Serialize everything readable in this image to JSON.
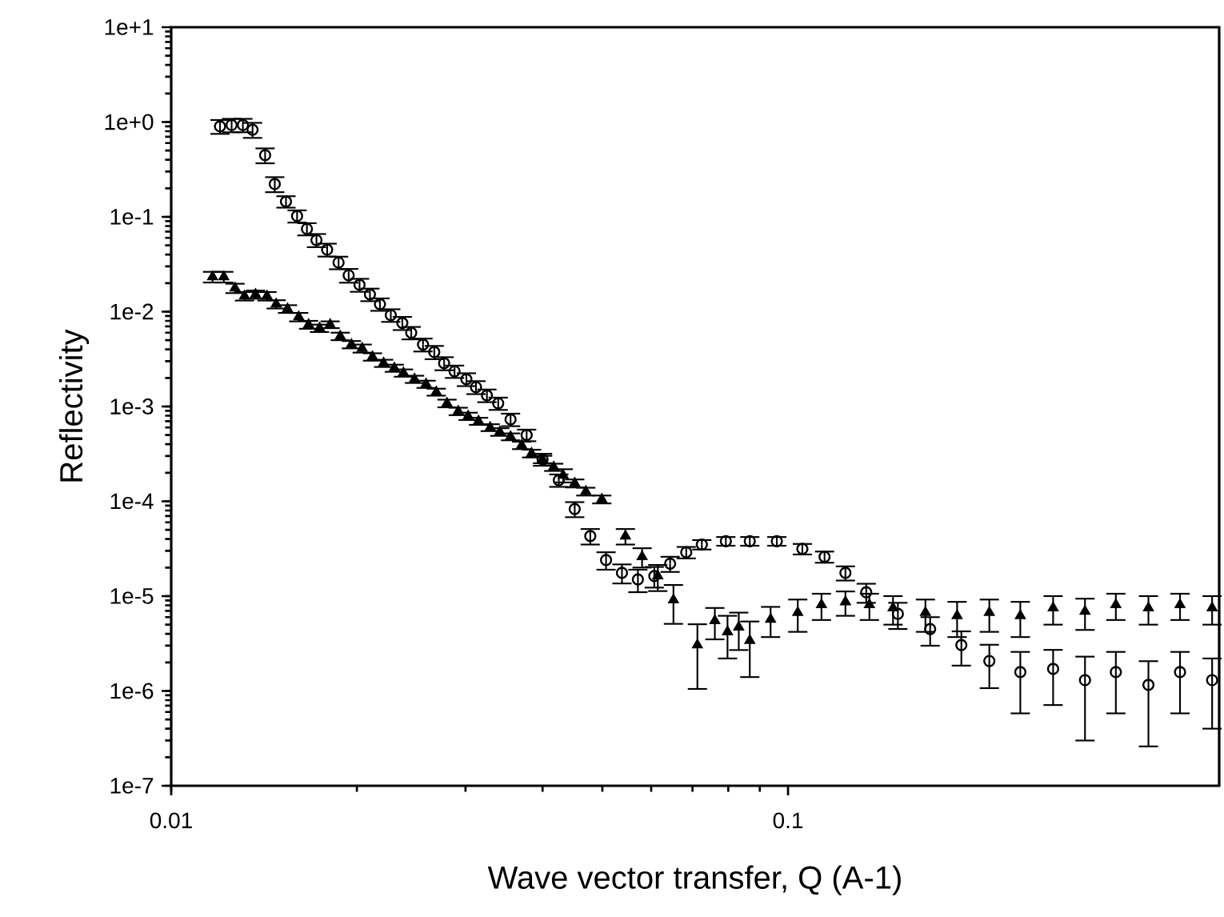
{
  "chart_data": {
    "type": "scatter",
    "xlabel": "Wave vector transfer, Q (A-1)",
    "ylabel": "Reflectivity",
    "log": "xy",
    "xlim": [
      0.01,
      0.5
    ],
    "ylim": [
      1e-07,
      10
    ],
    "xticks": [
      {
        "value": 0.01,
        "label": "0.01"
      },
      {
        "value": 0.1,
        "label": "0.1"
      }
    ],
    "yticks": [
      {
        "value": 1e-07,
        "label": "1e-7"
      },
      {
        "value": 1e-06,
        "label": "1e-6"
      },
      {
        "value": 1e-05,
        "label": "1e-5"
      },
      {
        "value": 0.0001,
        "label": "1e-4"
      },
      {
        "value": 0.001,
        "label": "1e-3"
      },
      {
        "value": 0.01,
        "label": "1e-2"
      },
      {
        "value": 0.1,
        "label": "1e-1"
      },
      {
        "value": 1,
        "label": "1e+0"
      },
      {
        "value": 10,
        "label": "1e+1"
      }
    ],
    "series": [
      {
        "color": "#000000",
        "marker": "circle",
        "x": [
          0.012,
          0.01253,
          0.01307,
          0.01355,
          0.0142,
          0.01472,
          0.01535,
          0.016,
          0.0166,
          0.0172,
          0.0179,
          0.01868,
          0.0194,
          0.0202,
          0.021,
          0.0218,
          0.0227,
          0.0237,
          0.0245,
          0.0256,
          0.0267,
          0.0277,
          0.0288,
          0.0301,
          0.0312,
          0.0325,
          0.0339,
          0.0355,
          0.0377,
          0.04,
          0.0425,
          0.0451,
          0.0478,
          0.0507,
          0.0538,
          0.0571,
          0.0607,
          0.0644,
          0.0684,
          0.0725,
          0.0793,
          0.0867,
          0.0959,
          0.1055,
          0.1146,
          0.1239,
          0.1339,
          0.1507,
          0.17,
          0.191,
          0.212,
          0.238,
          0.269,
          0.303,
          0.34,
          0.384,
          0.432,
          0.487
        ],
        "values": [
          0.9,
          0.93,
          0.93,
          0.83,
          0.447,
          0.222,
          0.145,
          0.102,
          0.0747,
          0.0569,
          0.0451,
          0.033,
          0.0242,
          0.0192,
          0.0152,
          0.012,
          0.0092,
          0.0076,
          0.006,
          0.0045,
          0.00375,
          0.00286,
          0.00235,
          0.00194,
          0.0016,
          0.00131,
          0.00108,
          0.00073,
          0.0005,
          0.000277,
          0.000167,
          8.3e-05,
          4.3e-05,
          2.4e-05,
          1.76e-05,
          1.5e-05,
          1.63e-05,
          2.2e-05,
          2.9e-05,
          3.5e-05,
          3.8e-05,
          3.8e-05,
          3.8e-05,
          3.15e-05,
          2.6e-05,
          1.76e-05,
          1.1e-05,
          6.5e-06,
          4.5e-06,
          3.05e-06,
          2.07e-06,
          1.58e-06,
          1.71e-06,
          1.3e-06,
          1.58e-06,
          1.16e-06,
          1.58e-06,
          1.3e-06
        ],
        "errors": [
          0.15,
          0.15,
          0.15,
          0.15,
          0.08,
          0.04,
          0.02,
          0.015,
          0.011,
          0.009,
          0.007,
          0.005,
          0.004,
          0.003,
          0.0023,
          0.0018,
          0.0014,
          0.0012,
          0.0009,
          0.0007,
          0.0006,
          0.00045,
          0.00035,
          0.0003,
          0.00025,
          0.0002,
          0.00016,
          0.00011,
          7e-05,
          4e-05,
          2.5e-05,
          1.5e-05,
          8e-06,
          5e-06,
          4e-06,
          4e-06,
          4e-06,
          4e-06,
          4e-06,
          4e-06,
          4e-06,
          4e-06,
          4e-06,
          4e-06,
          3.5e-06,
          3e-06,
          2.5e-06,
          2e-06,
          1.5e-06,
          1.2e-06,
          1e-06,
          1e-06,
          1e-06,
          1e-06,
          1e-06,
          9e-07,
          1e-06,
          9e-07
        ]
      },
      {
        "color": "#000000",
        "marker": "triangle",
        "x": [
          0.01167,
          0.01217,
          0.01269,
          0.01315,
          0.0137,
          0.0143,
          0.0148,
          0.01544,
          0.0161,
          0.0167,
          0.0174,
          0.0181,
          0.0188,
          0.0196,
          0.0204,
          0.0212,
          0.0221,
          0.023,
          0.0238,
          0.0248,
          0.0259,
          0.0269,
          0.028,
          0.0292,
          0.0303,
          0.0315,
          0.0329,
          0.0341,
          0.0355,
          0.037,
          0.0384,
          0.04,
          0.0417,
          0.0432,
          0.0451,
          0.047,
          0.0499,
          0.0545,
          0.058,
          0.0615,
          0.0652,
          0.0713,
          0.0761,
          0.0798,
          0.0832,
          0.0867,
          0.0937,
          0.1037,
          0.1133,
          0.1239,
          0.1355,
          0.148,
          0.167,
          0.188,
          0.212,
          0.238,
          0.269,
          0.303,
          0.34,
          0.384,
          0.432,
          0.487
        ],
        "values": [
          0.0233,
          0.0233,
          0.0177,
          0.0146,
          0.0152,
          0.0146,
          0.012,
          0.0107,
          0.0088,
          0.0073,
          0.0067,
          0.0073,
          0.0055,
          0.0045,
          0.0041,
          0.00334,
          0.00286,
          0.00254,
          0.00226,
          0.00194,
          0.00172,
          0.00142,
          0.00108,
          0.00089,
          0.00079,
          0.0007,
          0.0006,
          0.00054,
          0.00048,
          0.00039,
          0.00032,
          0.000277,
          0.000229,
          0.000188,
          0.000155,
          0.000127,
          0.000105,
          4.3e-05,
          2.6e-05,
          1.63e-05,
          9.1e-06,
          3.05e-06,
          5.5e-06,
          4.2e-06,
          4.7e-06,
          3.4e-06,
          5.7e-06,
          6.7e-06,
          8.1e-06,
          8.7e-06,
          8.1e-06,
          7.5e-06,
          6.7e-06,
          6.2e-06,
          6.7e-06,
          6.2e-06,
          7.5e-06,
          6.9e-06,
          8.1e-06,
          7.5e-06,
          8.1e-06,
          7.5e-06
        ],
        "errors": [
          0.003,
          0.003,
          0.002,
          0.0015,
          0.0015,
          0.0015,
          0.0012,
          0.001,
          0.0009,
          0.0007,
          0.0006,
          0.0006,
          0.0005,
          0.0004,
          0.0004,
          0.0003,
          0.00025,
          0.00022,
          0.0002,
          0.00017,
          0.00015,
          0.00012,
          0.0001,
          8e-05,
          7e-05,
          6e-05,
          5e-05,
          5e-05,
          4e-05,
          3.5e-05,
          3e-05,
          2.5e-05,
          2e-05,
          3e-05,
          1.5e-05,
          1.2e-05,
          1e-05,
          8e-06,
          6e-06,
          5e-06,
          4e-06,
          2e-06,
          2e-06,
          2e-06,
          2e-06,
          2e-06,
          2e-06,
          2.5e-06,
          2.5e-06,
          2.5e-06,
          2.5e-06,
          2.5e-06,
          2.5e-06,
          2.5e-06,
          2.5e-06,
          2.5e-06,
          2.5e-06,
          2.5e-06,
          2.5e-06,
          2.5e-06,
          2.5e-06,
          2.5e-06
        ]
      }
    ]
  }
}
